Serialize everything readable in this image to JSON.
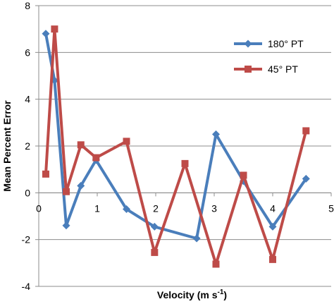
{
  "chart_data": {
    "type": "line",
    "xlabel": "Velocity (m s",
    "xlabel_sup": "-1",
    "xlabel_tail": ")",
    "ylabel": "Mean Percent Error",
    "xlim": [
      0,
      5
    ],
    "ylim": [
      -4,
      8
    ],
    "xticks": [
      0,
      1,
      2,
      3,
      4,
      5
    ],
    "yticks": [
      -4,
      -2,
      0,
      2,
      4,
      6,
      8
    ],
    "grid": "horizontal",
    "legend_position": "right",
    "series": [
      {
        "name": "180° PT",
        "color": "#4a7ebb",
        "marker": "diamond",
        "x": [
          0.12,
          0.27,
          0.47,
          0.72,
          0.98,
          1.5,
          1.98,
          2.7,
          3.03,
          3.5,
          4.0,
          4.57
        ],
        "y": [
          6.8,
          4.8,
          -1.4,
          0.3,
          1.4,
          -0.7,
          -1.45,
          -1.95,
          2.5,
          0.5,
          -1.45,
          0.6
        ]
      },
      {
        "name": "45° PT",
        "color": "#be4b48",
        "marker": "square",
        "x": [
          0.12,
          0.27,
          0.47,
          0.72,
          0.98,
          1.5,
          1.98,
          2.5,
          3.03,
          3.5,
          4.0,
          4.57
        ],
        "y": [
          0.8,
          7.0,
          0.05,
          2.05,
          1.5,
          2.2,
          -2.55,
          1.25,
          -3.05,
          0.75,
          -2.85,
          2.65
        ]
      }
    ]
  }
}
